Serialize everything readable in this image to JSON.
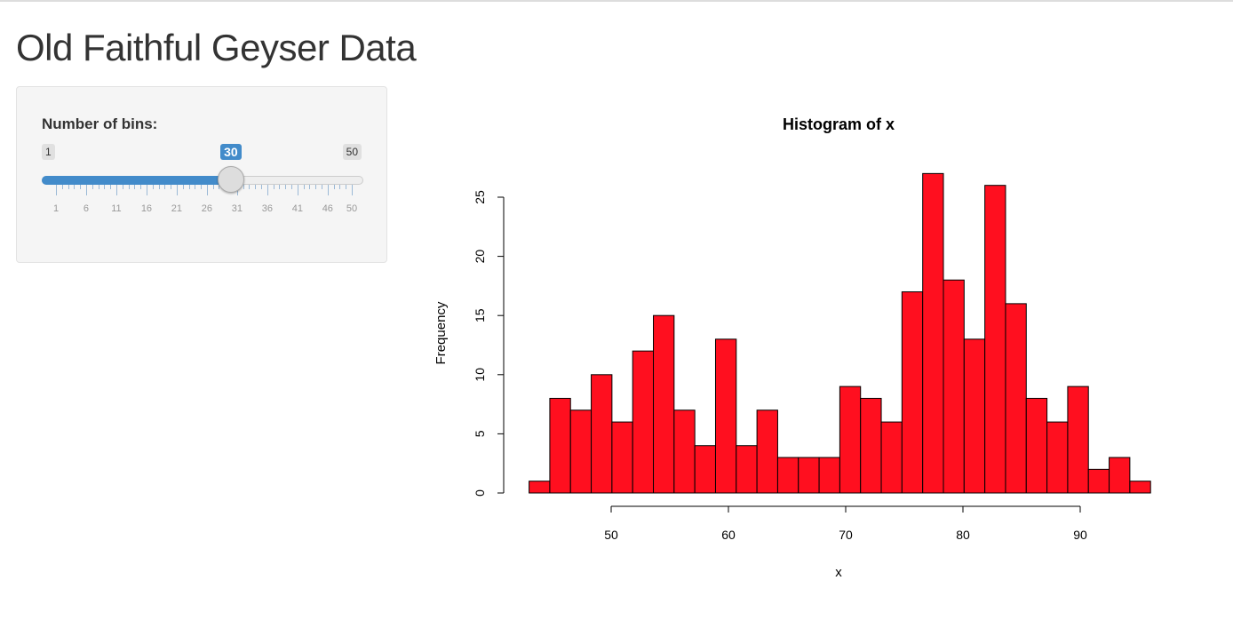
{
  "page_title": "Old Faithful Geyser Data",
  "sidebar": {
    "slider": {
      "label": "Number of bins:",
      "min": 1,
      "max": 50,
      "value": 30,
      "min_label": "1",
      "max_label": "50",
      "value_label": "30",
      "tick_labels": [
        "1",
        "6",
        "11",
        "16",
        "21",
        "26",
        "31",
        "36",
        "41",
        "46",
        "50"
      ],
      "accent": "#428bca"
    }
  },
  "chart_data": {
    "type": "bar",
    "title": "Histogram of x",
    "xlabel": "x",
    "ylabel": "Frequency",
    "bin_start": 43,
    "bin_end": 96,
    "values": [
      1,
      8,
      7,
      10,
      6,
      12,
      15,
      7,
      4,
      13,
      4,
      7,
      3,
      3,
      3,
      9,
      8,
      6,
      17,
      27,
      18,
      13,
      26,
      16,
      8,
      6,
      9,
      2,
      3,
      1
    ],
    "x_ticks": [
      "50",
      "60",
      "70",
      "80",
      "90"
    ],
    "y_ticks": [
      "0",
      "5",
      "10",
      "15",
      "20",
      "25"
    ],
    "bar_color": "#ff0f1f",
    "grid": false
  }
}
